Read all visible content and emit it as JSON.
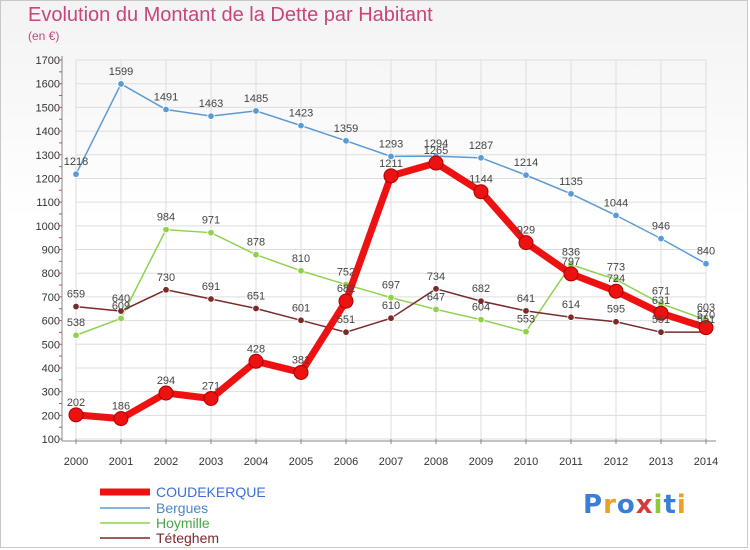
{
  "chart_data": {
    "type": "line",
    "title": "Evolution du Montant de la Dette par Habitant",
    "subtitle": "(en €)",
    "xlabel": "",
    "ylabel": "",
    "categories": [
      "2000",
      "2001",
      "2002",
      "2003",
      "2004",
      "2005",
      "2006",
      "2007",
      "2008",
      "2009",
      "2010",
      "2011",
      "2012",
      "2013",
      "2014"
    ],
    "ylim": [
      100,
      1700
    ],
    "yticks": [
      100,
      200,
      300,
      400,
      500,
      600,
      700,
      800,
      900,
      1000,
      1100,
      1200,
      1300,
      1400,
      1500,
      1600,
      1700
    ],
    "grid": true,
    "legend_position": "bottom-left",
    "series": [
      {
        "name": "COUDEKERQUE",
        "color": "#ee1111",
        "values": [
          202,
          186,
          294,
          271,
          428,
          381,
          682,
          1211,
          1265,
          1144,
          929,
          797,
          724,
          631,
          570
        ],
        "labels": [
          "202",
          "186",
          "294",
          "271",
          "428",
          "381",
          "682",
          "1211",
          "1265",
          "1144",
          "929",
          "797",
          "724",
          "631",
          "570"
        ]
      },
      {
        "name": "Bergues",
        "color": "#5b9bd5",
        "values": [
          1218,
          1599,
          1491,
          1463,
          1485,
          1423,
          1359,
          1293,
          1294,
          1287,
          1214,
          1135,
          1044,
          946,
          840
        ],
        "labels": [
          "1218",
          "1599",
          "1491",
          "1463",
          "1485",
          "1423",
          "1359",
          "1293",
          "1294",
          "1287",
          "1214",
          "1135",
          "1044",
          "946",
          "840"
        ]
      },
      {
        "name": "Hoymille",
        "color": "#8fd14f",
        "values": [
          538,
          609,
          984,
          971,
          878,
          810,
          752,
          697,
          647,
          604,
          553,
          836,
          773,
          671,
          603
        ],
        "labels": [
          "538",
          "609",
          "984",
          "971",
          "878",
          "810",
          "752",
          "697",
          "647",
          "604",
          "553",
          "836",
          "773",
          "671",
          "603"
        ]
      },
      {
        "name": "Téteghem",
        "color": "#7b2a2a",
        "values": [
          659,
          640,
          730,
          691,
          651,
          601,
          551,
          610,
          734,
          682,
          641,
          614,
          595,
          551,
          551
        ],
        "labels": [
          "659",
          "640",
          "730",
          "691",
          "651",
          "601",
          "551",
          "610",
          "734",
          "682",
          "641",
          "614",
          "595",
          "551",
          "551"
        ]
      }
    ]
  },
  "logo": {
    "text": "Proxiti",
    "colors": [
      "#3a7fd5",
      "#f0a020",
      "#3a7fd5",
      "#d63a3a",
      "#8fc93a",
      "#3a7fd5",
      "#f0a020"
    ]
  }
}
